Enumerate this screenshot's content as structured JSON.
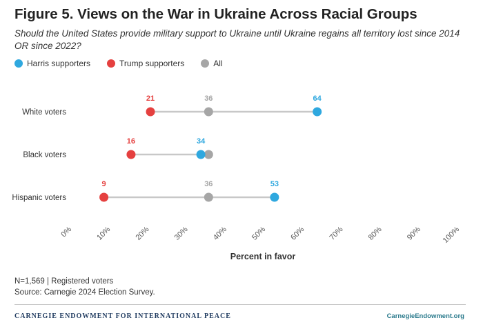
{
  "header": {
    "title": "Figure 5. Views on the War in Ukraine Across Racial Groups",
    "subtitle": "Should the United States provide military support to Ukraine until Ukraine regains all territory lost since 2014 OR since 2022?"
  },
  "legend": [
    {
      "label": "Harris supporters",
      "color": "#2fa8df"
    },
    {
      "label": "Trump supporters",
      "color": "#e5403f"
    },
    {
      "label": "All",
      "color": "#a6a6a6"
    }
  ],
  "colors": {
    "harris": "#2fa8df",
    "trump": "#e5403f",
    "all": "#a6a6a6",
    "line": "#c8c8c8"
  },
  "chart_data": {
    "type": "dot-range",
    "xlabel": "Percent in favor",
    "ylabel": "",
    "xlim": [
      0,
      100
    ],
    "tick_labels": [
      "0%",
      "10%",
      "20%",
      "30%",
      "40%",
      "50%",
      "60%",
      "70%",
      "80%",
      "90%",
      "100%"
    ],
    "categories": [
      "White voters",
      "Black voters",
      "Hispanic voters"
    ],
    "series": [
      {
        "name": "Harris supporters",
        "values": [
          64,
          34,
          53
        ]
      },
      {
        "name": "Trump supporters",
        "values": [
          21,
          16,
          9
        ]
      },
      {
        "name": "All",
        "values": [
          36,
          36,
          36
        ]
      }
    ],
    "data_labels": [
      [
        {
          "series": "Trump supporters",
          "text": "21"
        },
        {
          "series": "All",
          "text": "36"
        },
        {
          "series": "Harris supporters",
          "text": "64"
        }
      ],
      [
        {
          "series": "Trump supporters",
          "text": "16"
        },
        {
          "series": "Harris supporters",
          "text": "34"
        }
      ],
      [
        {
          "series": "Trump supporters",
          "text": "9"
        },
        {
          "series": "All",
          "text": "36"
        },
        {
          "series": "Harris supporters",
          "text": "53"
        }
      ]
    ]
  },
  "footer": {
    "note_line1": "N=1,569 | Registered voters",
    "note_line2": "Source: Carnegie 2024 Election Survey.",
    "brand": "CARNEGIE ENDOWMENT FOR INTERNATIONAL PEACE",
    "url": "CarnegieEndowment.org"
  }
}
